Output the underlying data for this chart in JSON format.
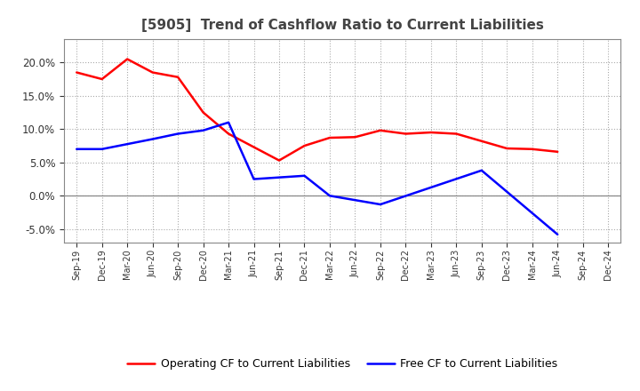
{
  "title": "[5905]  Trend of Cashflow Ratio to Current Liabilities",
  "x_labels": [
    "Sep-19",
    "Dec-19",
    "Mar-20",
    "Jun-20",
    "Sep-20",
    "Dec-20",
    "Mar-21",
    "Jun-21",
    "Sep-21",
    "Dec-21",
    "Mar-22",
    "Jun-22",
    "Sep-22",
    "Dec-22",
    "Mar-23",
    "Jun-23",
    "Sep-23",
    "Dec-23",
    "Mar-24",
    "Jun-24",
    "Sep-24",
    "Dec-24"
  ],
  "operating_cf_x": [
    0,
    1,
    2,
    3,
    4,
    5,
    6,
    8,
    9,
    10,
    11,
    12,
    13,
    14,
    15,
    16,
    17,
    18,
    19
  ],
  "operating_cf_y": [
    0.185,
    0.175,
    0.205,
    0.185,
    0.178,
    0.125,
    0.093,
    0.053,
    0.075,
    0.087,
    0.088,
    0.098,
    0.093,
    0.095,
    0.093,
    0.082,
    0.071,
    0.07,
    0.066
  ],
  "free_cf_x": [
    0,
    1,
    3,
    4,
    5,
    6,
    7,
    9,
    10,
    12,
    16,
    19
  ],
  "free_cf_y": [
    0.07,
    0.07,
    0.085,
    0.093,
    0.098,
    0.11,
    0.025,
    0.03,
    0.0,
    -0.013,
    0.038,
    -0.058
  ],
  "ylim": [
    -0.07,
    0.235
  ],
  "yticks": [
    -0.05,
    0.0,
    0.05,
    0.1,
    0.15,
    0.2
  ],
  "operating_color": "#FF0000",
  "free_color": "#0000FF",
  "background_color": "#FFFFFF",
  "grid_color": "#AAAAAA",
  "title_color": "#444444",
  "legend_labels": [
    "Operating CF to Current Liabilities",
    "Free CF to Current Liabilities"
  ]
}
